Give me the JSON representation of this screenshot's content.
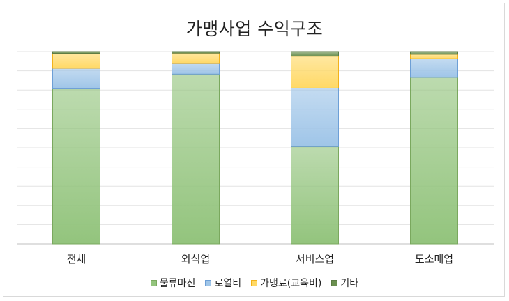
{
  "chart_data": {
    "type": "bar",
    "stacked": true,
    "percent": true,
    "title": "가맹사업 수익구조",
    "categories": [
      "전체",
      "외식업",
      "서비스업",
      "도소매업"
    ],
    "series": [
      {
        "name": "물류마진",
        "color": "#93c47d",
        "values": [
          80.6,
          88.3,
          50.6,
          86.6
        ]
      },
      {
        "name": "로열티",
        "color": "#9fc5e8",
        "values": [
          10.7,
          5.5,
          30.4,
          9.7
        ]
      },
      {
        "name": "가맹료(교육비)",
        "color": "#ffd966",
        "values": [
          7.8,
          5.4,
          16.6,
          2.3
        ]
      },
      {
        "name": "기타",
        "color": "#6a8f4f",
        "values": [
          0.9,
          0.8,
          2.4,
          1.4
        ]
      }
    ],
    "ylim": [
      0,
      100
    ],
    "grid": true,
    "legend": "bottom"
  }
}
